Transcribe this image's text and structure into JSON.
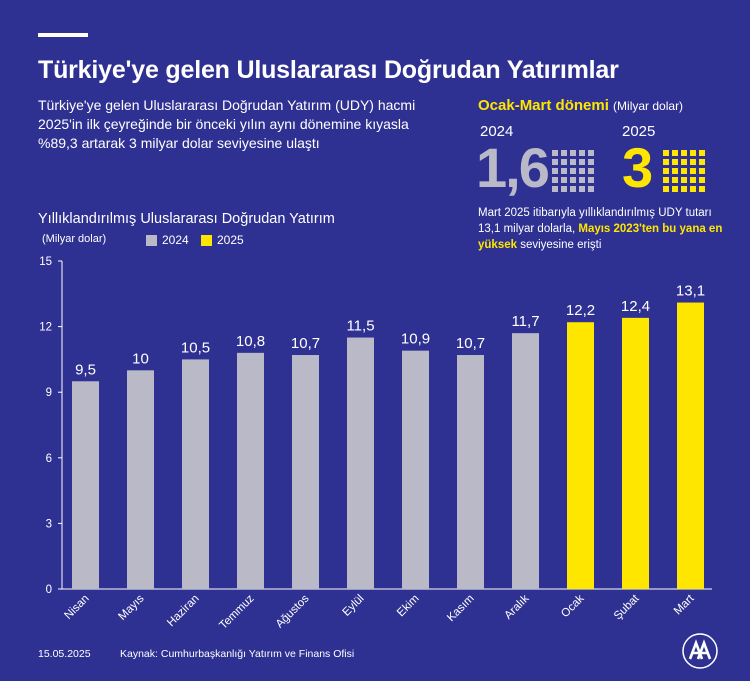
{
  "header": {
    "title": "Türkiye'ye gelen Uluslararası Doğrudan Yatırımlar",
    "intro": "Türkiye'ye gelen Uluslararası Doğrudan Yatırım (UDY) hacmi 2025'in ilk çeyreğinde bir önceki yılın aynı dönemine kıyasla %89,3 artarak 3 milyar dolar seviyesine ulaştı"
  },
  "highlight_box": {
    "title": "Ocak-Mart dönemi",
    "unit": "(Milyar dolar)",
    "year_a": "2024",
    "value_a": "1,6",
    "year_b": "2025",
    "value_b": "3",
    "note_start": "Mart 2025 itibarıyla yıllıklandırılmış UDY tutarı 13,1 milyar dolarla, ",
    "note_highlight": "Mayıs 2023'ten bu yana en yüksek",
    "note_end": " seviyesine erişti"
  },
  "chart_header": {
    "title": "Yıllıklandırılmış Uluslararası Doğrudan Yatırım",
    "unit": "(Milyar dolar)"
  },
  "colors": {
    "background": "#2f3192",
    "series_2024": "#b9b9c8",
    "series_2025": "#ffe600",
    "axis": "#ffffff",
    "gridline": "#5a5cb0"
  },
  "chart_data": {
    "type": "bar",
    "title": "Yıllıklandırılmış Uluslararası Doğrudan Yatırım",
    "ylabel": "(Milyar dolar)",
    "ylim": [
      0,
      15
    ],
    "yticks": [
      0,
      3,
      6,
      9,
      12,
      15
    ],
    "categories": [
      "Nisan",
      "Mayıs",
      "Haziran",
      "Temmuz",
      "Ağustos",
      "Eylül",
      "Ekim",
      "Kasım",
      "Aralık",
      "Ocak",
      "Şubat",
      "Mart"
    ],
    "values": [
      9.5,
      10,
      10.5,
      10.8,
      10.7,
      11.5,
      10.9,
      10.7,
      11.7,
      12.2,
      12.4,
      13.1
    ],
    "value_labels": [
      "9,5",
      "10",
      "10,5",
      "10,8",
      "10,7",
      "11,5",
      "10,9",
      "10,7",
      "11,7",
      "12,2",
      "12,4",
      "13,1"
    ],
    "series_of_bar": [
      "2024",
      "2024",
      "2024",
      "2024",
      "2024",
      "2024",
      "2024",
      "2024",
      "2024",
      "2025",
      "2025",
      "2025"
    ],
    "legend": [
      "2024",
      "2025"
    ],
    "legend_position": "top-left",
    "grid": false
  },
  "footer": {
    "date": "15.05.2025",
    "source": "Kaynak: Cumhurbaşkanlığı Yatırım ve Finans Ofisi",
    "logo": "AA"
  }
}
